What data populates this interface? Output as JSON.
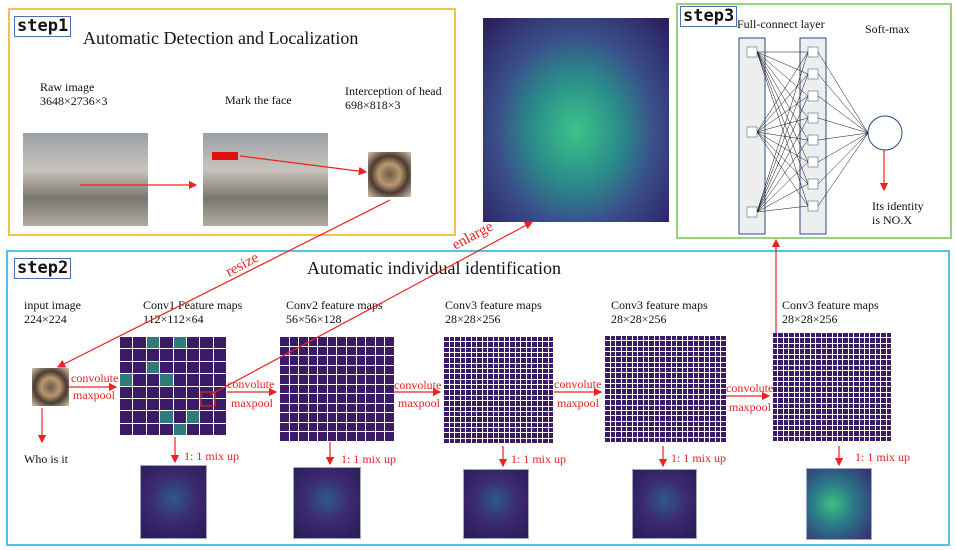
{
  "step1": {
    "tag": "step1",
    "title": "Automatic Detection and Localization",
    "raw_label": "Raw image",
    "raw_size": "3648×2736×3",
    "mark_label": "Mark the face",
    "head_label": "Interception of head",
    "head_size": "698×818×3"
  },
  "arrows": {
    "resize": "resize",
    "enlarge": "enlarge"
  },
  "step2": {
    "tag": "step2",
    "title": "Automatic individual identification",
    "input_label": "input image",
    "input_size": "224×224",
    "who": "Who is it",
    "convolute": "convolute",
    "maxpool": "maxpool",
    "mixup": "1:  1 mix up",
    "layers": [
      {
        "label": "Conv1 Feature maps",
        "size": "112×112×64"
      },
      {
        "label": "Conv2  feature maps",
        "size": "56×56×128"
      },
      {
        "label": "Conv3 feature maps",
        "size": "28×28×256"
      },
      {
        "label": "Conv3 feature maps",
        "size": "28×28×256"
      },
      {
        "label": "Conv3 feature maps",
        "size": "28×28×256"
      }
    ]
  },
  "step3": {
    "tag": "step3",
    "fc_label": "Full-connect layer",
    "softmax_label": "Soft-max",
    "identity_line1": "Its identity",
    "identity_line2": "is NO.X"
  },
  "colors": {
    "step1_border": "#f2c14e",
    "step2_border": "#4fc3e8",
    "step3_border": "#9bd07a",
    "arrow": "#f02020",
    "feature": "#3b1a66"
  }
}
